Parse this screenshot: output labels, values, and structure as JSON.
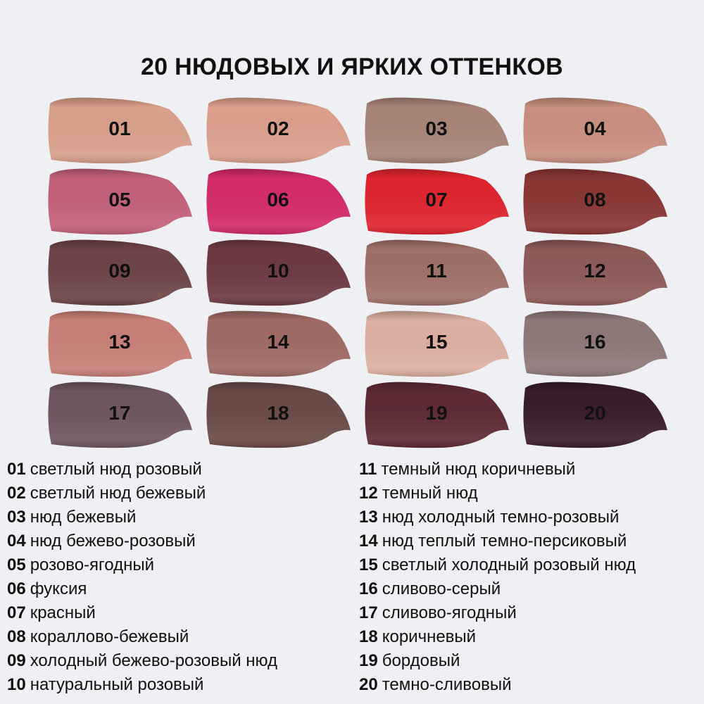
{
  "title": "20 НЮДОВЫХ И ЯРКИХ ОТТЕНКОВ",
  "shades": [
    {
      "num": "01",
      "name": "светлый нюд розовый",
      "color": "#d9a08a"
    },
    {
      "num": "02",
      "name": "светлый нюд бежевый",
      "color": "#dca08c"
    },
    {
      "num": "03",
      "name": "нюд бежевый",
      "color": "#a88478"
    },
    {
      "num": "04",
      "name": "нюд бежево-розовый",
      "color": "#c98f80"
    },
    {
      "num": "05",
      "name": "розово-ягодный",
      "color": "#c4607a"
    },
    {
      "num": "06",
      "name": "фуксия",
      "color": "#d42a6a"
    },
    {
      "num": "07",
      "name": "красный",
      "color": "#e0242e"
    },
    {
      "num": "08",
      "name": "кораллово-бежевый",
      "color": "#8a3634"
    },
    {
      "num": "09",
      "name": "холодный бежево-розовый нюд",
      "color": "#6e4446"
    },
    {
      "num": "10",
      "name": "натуральный розовый",
      "color": "#6e3a42"
    },
    {
      "num": "11",
      "name": "темный нюд коричневый",
      "color": "#a0706a"
    },
    {
      "num": "12",
      "name": "темный нюд",
      "color": "#8e5a58"
    },
    {
      "num": "13",
      "name": "нюд холодный темно-розовый",
      "color": "#c88078"
    },
    {
      "num": "14",
      "name": "нюд теплый темно-персиковый",
      "color": "#a06a66"
    },
    {
      "num": "15",
      "name": "светлый холодный розовый нюд",
      "color": "#ddb0a2"
    },
    {
      "num": "16",
      "name": "сливово-серый",
      "color": "#8e7878"
    },
    {
      "num": "17",
      "name": "сливово-ягодный",
      "color": "#6e5660"
    },
    {
      "num": "18",
      "name": "коричневый",
      "color": "#6a4a46"
    },
    {
      "num": "19",
      "name": "бордовый",
      "color": "#5e2a34"
    },
    {
      "num": "20",
      "name": "темно-сливовый",
      "color": "#3a1c2c"
    }
  ]
}
